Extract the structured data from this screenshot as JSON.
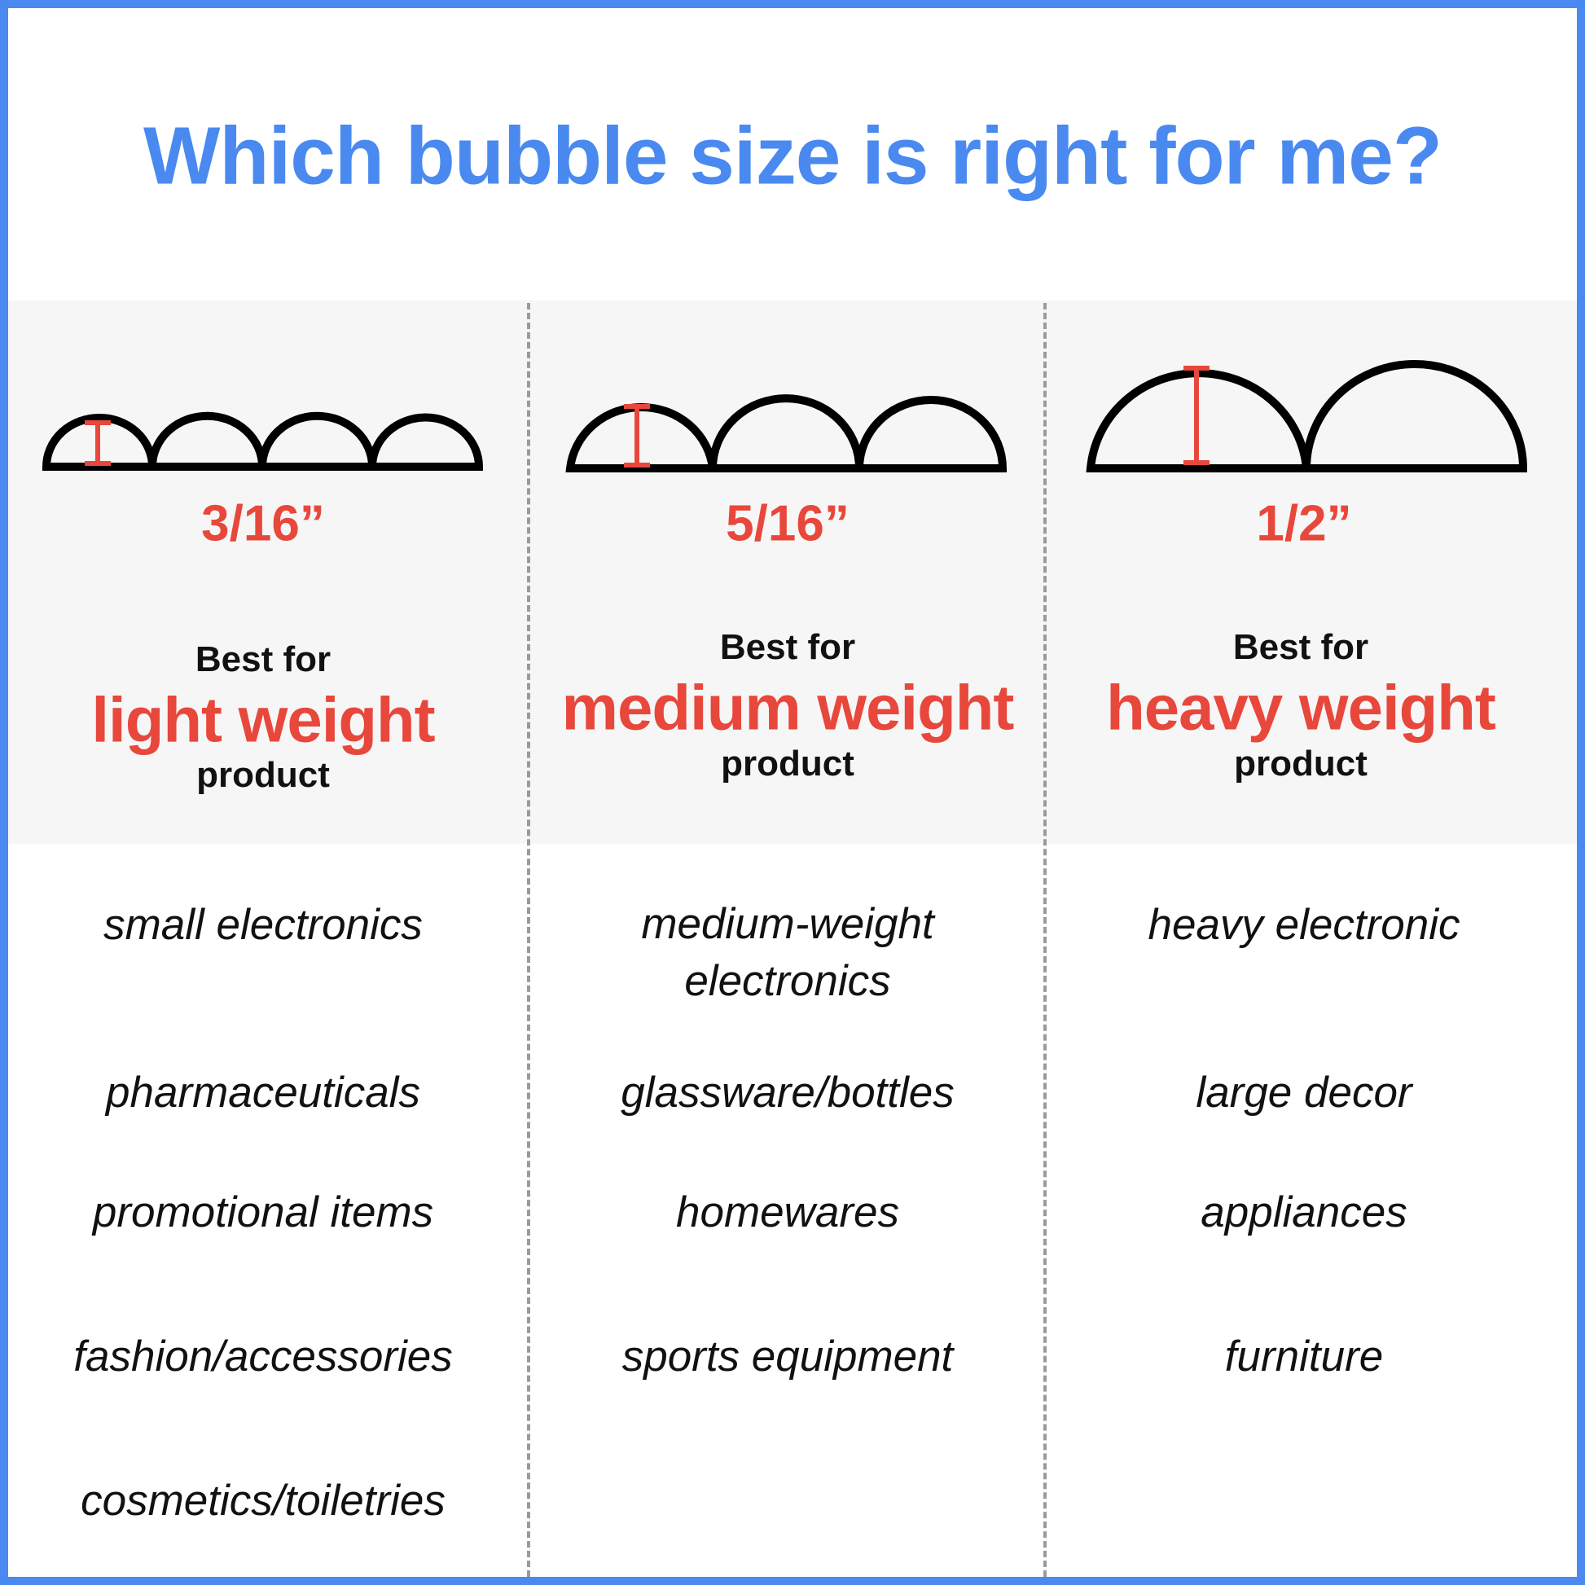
{
  "title": "Which bubble size is right for me?",
  "colors": {
    "title": "#4a8af0",
    "accent": "#e8473b",
    "panel": "#f6f6f6",
    "border": "#4a8af0"
  },
  "columns": [
    {
      "size": "3/16”",
      "best_for": "Best for",
      "weight": "light weight",
      "product": "product",
      "items": [
        "small electronics",
        "pharmaceuticals",
        "promotional items",
        "fashion/accessories",
        "cosmetics/toiletries"
      ]
    },
    {
      "size": "5/16”",
      "best_for": "Best for",
      "weight": "medium weight",
      "product": "product",
      "items": [
        "medium-weight electronics",
        "glassware/bottles",
        "homewares",
        "sports equipment"
      ]
    },
    {
      "size": "1/2”",
      "best_for": "Best for",
      "weight": "heavy weight",
      "product": "product",
      "items": [
        "heavy electronic",
        "large decor",
        "appliances",
        "furniture"
      ]
    }
  ]
}
